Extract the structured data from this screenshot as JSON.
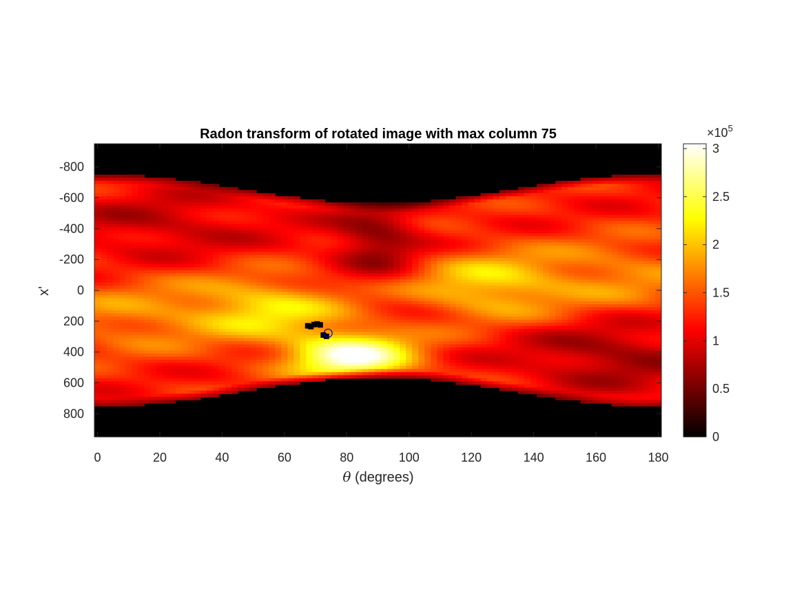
{
  "chart_data": {
    "type": "heatmap",
    "title": "Radon transform of rotated image with max column 75",
    "xlabel_symbol": "θ",
    "xlabel_text": " (degrees)",
    "ylabel": "x'",
    "xlim": [
      -1,
      181
    ],
    "ylim": [
      -950,
      950
    ],
    "y_reversed": true,
    "x_ticks": [
      0,
      20,
      40,
      60,
      80,
      100,
      120,
      140,
      160,
      180
    ],
    "y_ticks": [
      -800,
      -600,
      -400,
      -200,
      0,
      200,
      400,
      600,
      800
    ],
    "colormap": "hot",
    "colorbar": {
      "min": 0,
      "max": 305000,
      "exponent_label": "×10",
      "exponent_power": "5",
      "ticks": [
        0,
        0.5,
        1,
        1.5,
        2,
        2.5,
        3
      ],
      "tick_labels": [
        "0",
        "0.5",
        "1",
        "1.5",
        "2",
        "2.5",
        "3"
      ]
    },
    "support": {
      "half_width_at_0_deg": 750,
      "half_width_at_90_deg": 560
    },
    "peak_region": {
      "theta": 82,
      "x": 440,
      "value": 305000
    },
    "markers": [
      {
        "shape": "square",
        "color": "#000000",
        "theta": 67.5,
        "x": 230
      },
      {
        "shape": "square",
        "color": "#000000",
        "theta": 68.5,
        "x": 235
      },
      {
        "shape": "square",
        "color": "#000000",
        "theta": 69.5,
        "x": 222
      },
      {
        "shape": "square",
        "color": "#000000",
        "theta": 70.5,
        "x": 218
      },
      {
        "shape": "square",
        "color": "#000000",
        "theta": 71.5,
        "x": 224
      },
      {
        "shape": "square",
        "color": "#000000",
        "theta": 72.5,
        "x": 290
      },
      {
        "shape": "square",
        "color": "#000000",
        "theta": 73.5,
        "x": 298
      },
      {
        "shape": "circle",
        "color": "#0000cc",
        "theta": 74,
        "x": 278
      }
    ]
  }
}
